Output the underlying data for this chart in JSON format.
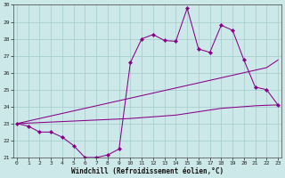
{
  "xlabel": "Windchill (Refroidissement éolien,°C)",
  "x": [
    0,
    1,
    2,
    3,
    4,
    5,
    6,
    7,
    8,
    9,
    10,
    11,
    12,
    13,
    14,
    15,
    16,
    17,
    18,
    19,
    20,
    21,
    22,
    23
  ],
  "line1_data": [
    23.0,
    22.85,
    22.5,
    22.5,
    22.2,
    21.7,
    21.0,
    21.0,
    21.15,
    21.5,
    26.6,
    28.0,
    28.25,
    27.9,
    27.85,
    29.8,
    27.4,
    27.2,
    28.8,
    28.5,
    26.75,
    25.15,
    25.0,
    24.1
  ],
  "line2_data": [
    23.0,
    23.15,
    23.3,
    23.45,
    23.6,
    23.75,
    23.9,
    24.05,
    24.2,
    24.35,
    24.5,
    24.65,
    24.8,
    24.95,
    25.1,
    25.25,
    25.4,
    25.55,
    25.7,
    25.85,
    26.0,
    26.15,
    26.3,
    26.75
  ],
  "line3_data": [
    23.0,
    23.03,
    23.06,
    23.09,
    23.12,
    23.15,
    23.18,
    23.21,
    23.24,
    23.27,
    23.3,
    23.35,
    23.4,
    23.45,
    23.5,
    23.6,
    23.7,
    23.8,
    23.9,
    23.95,
    24.0,
    24.05,
    24.08,
    24.1
  ],
  "ylim": [
    21,
    30
  ],
  "xlim_min": -0.3,
  "xlim_max": 23.3,
  "yticks": [
    21,
    22,
    23,
    24,
    25,
    26,
    27,
    28,
    29,
    30
  ],
  "xticks": [
    0,
    1,
    2,
    3,
    4,
    5,
    6,
    7,
    8,
    9,
    10,
    11,
    12,
    13,
    14,
    15,
    16,
    17,
    18,
    19,
    20,
    21,
    22,
    23
  ],
  "line_color": "#880088",
  "bg_color": "#cce8e8",
  "grid_color": "#aacece",
  "spine_color": "#444444",
  "tick_fontsize": 4.5,
  "xlabel_fontsize": 5.5,
  "marker": "D",
  "markersize": 2.2,
  "linewidth": 0.75
}
